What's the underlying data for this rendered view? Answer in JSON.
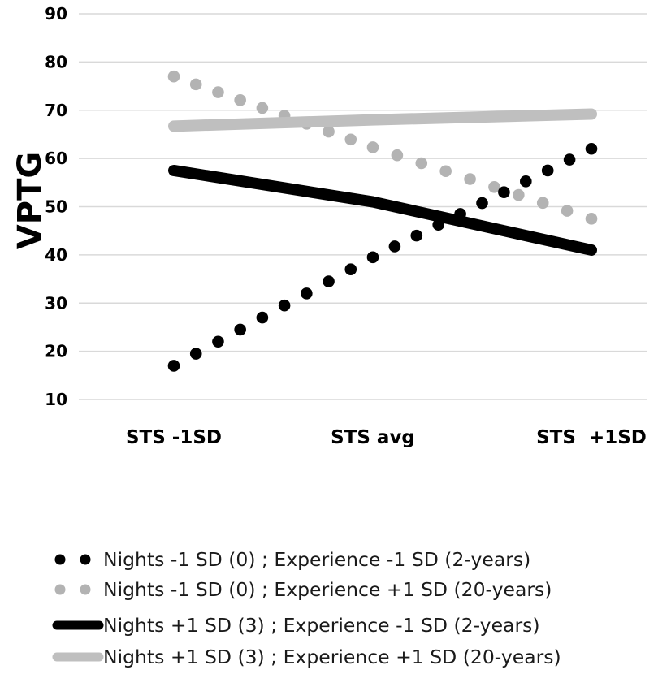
{
  "chart_data": {
    "type": "line",
    "ylabel": "VPTG",
    "xlabel": "",
    "categories": [
      "STS -1SD",
      "STS avg",
      "STS  +1SD"
    ],
    "ylim": [
      10,
      90
    ],
    "yticks": [
      10,
      20,
      30,
      40,
      50,
      60,
      70,
      80,
      90
    ],
    "grid": "horizontal",
    "legend_position": "bottom",
    "series": [
      {
        "name": "Nights -1 SD (0) ; Experience -1 SD (2-years)",
        "style": "dotted",
        "color": "#000000",
        "values": [
          17,
          39.5,
          62
        ]
      },
      {
        "name": "Nights -1 SD (0) ; Experience +1 SD (20-years)",
        "style": "dotted",
        "color": "#b3b3b3",
        "values": [
          77,
          62.3,
          47.5
        ]
      },
      {
        "name": "Nights +1 SD (3) ; Experience -1 SD (2-years)",
        "style": "solid",
        "color": "#000000",
        "values": [
          57.5,
          51,
          41
        ]
      },
      {
        "name": "Nights +1 SD (3) ; Experience +1 SD (20-years)",
        "style": "solid",
        "color": "#bfbfbf",
        "values": [
          66.7,
          68,
          69.2
        ]
      }
    ]
  }
}
